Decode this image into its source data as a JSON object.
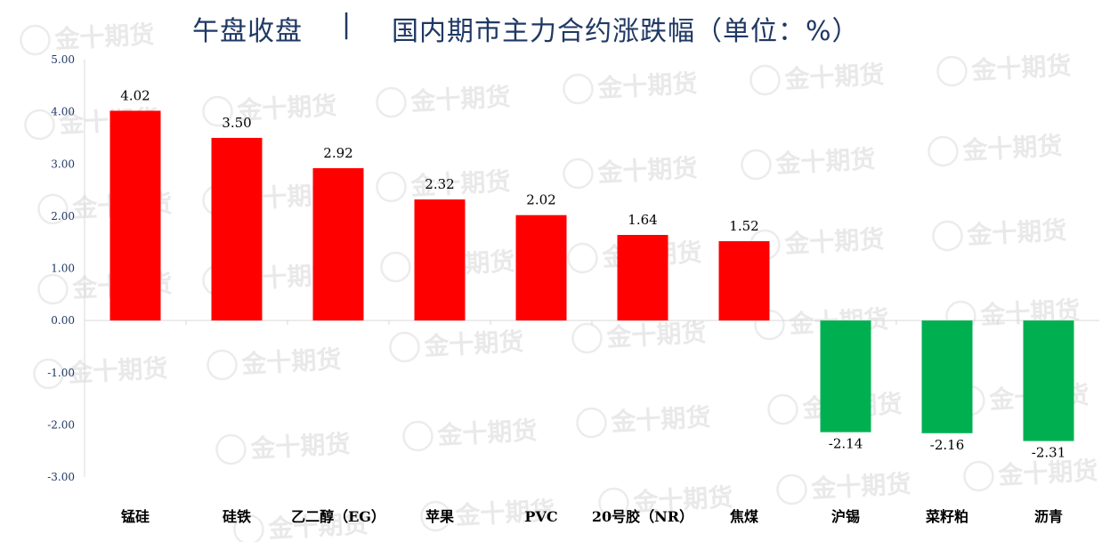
{
  "title": {
    "left": "午盘收盘",
    "separator": "|",
    "right": "国内期市主力合约涨跌幅（单位：%）"
  },
  "watermark": "金十期货",
  "colors": {
    "up": "#ff0000",
    "down": "#00b050",
    "axis_text": "#1f3864",
    "title": "#1f3864"
  },
  "chart_data": {
    "type": "bar",
    "categories": [
      "锰硅",
      "硅铁",
      "乙二醇（EG）",
      "苹果",
      "PVC",
      "20号胶（NR）",
      "焦煤",
      "沪锡",
      "菜籽粕",
      "沥青"
    ],
    "values": [
      4.02,
      3.5,
      2.92,
      2.32,
      2.02,
      1.64,
      1.52,
      -2.14,
      -2.16,
      -2.31
    ],
    "data_labels": [
      "4.02",
      "3.50",
      "2.92",
      "2.32",
      "2.02",
      "1.64",
      "1.52",
      "-2.14",
      "-2.16",
      "-2.31"
    ],
    "y_ticks": [
      "5.00",
      "4.00",
      "3.00",
      "2.00",
      "1.00",
      "0.00",
      "-1.00",
      "-2.00",
      "-3.00"
    ],
    "ylim": [
      -3,
      5
    ],
    "grid": false,
    "legend": "none"
  }
}
